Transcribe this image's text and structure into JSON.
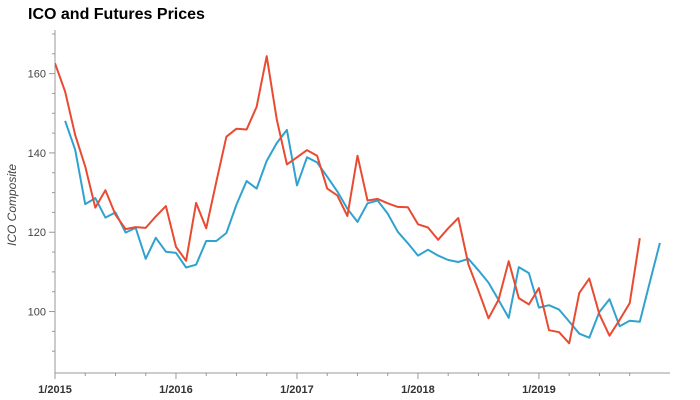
{
  "chart_data": {
    "type": "line",
    "title": "ICO and Futures Prices",
    "ylabel": "ICO Composite",
    "xlabel": "",
    "x_tick_labels": [
      "1/2015",
      "1/2016",
      "1/2017",
      "1/2018",
      "1/2019"
    ],
    "x_tick_dates": [
      "2015-01",
      "2016-01",
      "2017-01",
      "2018-01",
      "2019-01"
    ],
    "xlim": [
      "2015-01",
      "2020-02"
    ],
    "y_ticks": [
      100,
      120,
      140,
      160
    ],
    "ylim": [
      84.5,
      171
    ],
    "grid": false,
    "series": [
      {
        "color": "#31a2cf",
        "points": [
          [
            "2015-02",
            148.1
          ],
          [
            "2015-03",
            140.8
          ],
          [
            "2015-04",
            127.1
          ],
          [
            "2015-05",
            128.6
          ],
          [
            "2015-06",
            123.7
          ],
          [
            "2015-07",
            125.0
          ],
          [
            "2015-08",
            119.9
          ],
          [
            "2015-09",
            121.1
          ],
          [
            "2015-10",
            113.3
          ],
          [
            "2015-11",
            118.6
          ],
          [
            "2015-12",
            115.1
          ],
          [
            "2016-01",
            114.8
          ],
          [
            "2016-02",
            111.1
          ],
          [
            "2016-03",
            111.8
          ],
          [
            "2016-04",
            117.8
          ],
          [
            "2016-05",
            117.8
          ],
          [
            "2016-06",
            119.8
          ],
          [
            "2016-07",
            127.0
          ],
          [
            "2016-08",
            132.9
          ],
          [
            "2016-09",
            131.0
          ],
          [
            "2016-10",
            138.0
          ],
          [
            "2016-11",
            142.5
          ],
          [
            "2016-12",
            145.8
          ],
          [
            "2017-01",
            131.8
          ],
          [
            "2017-02",
            138.9
          ],
          [
            "2017-03",
            137.6
          ],
          [
            "2017-04",
            134.0
          ],
          [
            "2017-05",
            130.3
          ],
          [
            "2017-06",
            125.9
          ],
          [
            "2017-07",
            122.6
          ],
          [
            "2017-08",
            127.3
          ],
          [
            "2017-09",
            128.0
          ],
          [
            "2017-10",
            124.7
          ],
          [
            "2017-11",
            120.1
          ],
          [
            "2017-12",
            117.2
          ],
          [
            "2018-01",
            114.1
          ],
          [
            "2018-02",
            115.6
          ],
          [
            "2018-03",
            114.1
          ],
          [
            "2018-04",
            113.0
          ],
          [
            "2018-05",
            112.5
          ],
          [
            "2018-06",
            113.3
          ],
          [
            "2018-07",
            110.4
          ],
          [
            "2018-08",
            107.3
          ],
          [
            "2018-09",
            102.9
          ],
          [
            "2018-10",
            98.4
          ],
          [
            "2018-11",
            111.2
          ],
          [
            "2018-12",
            109.7
          ],
          [
            "2019-01",
            101.0
          ],
          [
            "2019-02",
            101.6
          ],
          [
            "2019-03",
            100.5
          ],
          [
            "2019-04",
            97.5
          ],
          [
            "2019-05",
            94.4
          ],
          [
            "2019-06",
            93.4
          ],
          [
            "2019-07",
            99.9
          ],
          [
            "2019-08",
            103.1
          ],
          [
            "2019-09",
            96.3
          ],
          [
            "2019-10",
            97.7
          ],
          [
            "2019-11",
            97.4
          ],
          [
            "2019-12",
            107.4
          ],
          [
            "2020-01",
            117.3
          ]
        ]
      },
      {
        "color": "#e84b32",
        "points": [
          [
            "2015-01",
            162.6
          ],
          [
            "2015-02",
            155.5
          ],
          [
            "2015-03",
            144.5
          ],
          [
            "2015-04",
            136.6
          ],
          [
            "2015-05",
            126.2
          ],
          [
            "2015-06",
            130.6
          ],
          [
            "2015-07",
            124.4
          ],
          [
            "2015-08",
            120.8
          ],
          [
            "2015-09",
            121.3
          ],
          [
            "2015-10",
            121.1
          ],
          [
            "2015-11",
            124.0
          ],
          [
            "2015-12",
            126.6
          ],
          [
            "2016-01",
            116.3
          ],
          [
            "2016-02",
            112.8
          ],
          [
            "2016-03",
            127.4
          ],
          [
            "2016-04",
            121.0
          ],
          [
            "2016-05",
            132.7
          ],
          [
            "2016-06",
            144.1
          ],
          [
            "2016-07",
            146.1
          ],
          [
            "2016-08",
            145.9
          ],
          [
            "2016-09",
            151.6
          ],
          [
            "2016-10",
            164.4
          ],
          [
            "2016-11",
            148.4
          ],
          [
            "2016-12",
            137.1
          ],
          [
            "2017-01",
            138.9
          ],
          [
            "2017-02",
            140.7
          ],
          [
            "2017-03",
            139.3
          ],
          [
            "2017-04",
            131.0
          ],
          [
            "2017-05",
            129.3
          ],
          [
            "2017-06",
            124.1
          ],
          [
            "2017-07",
            139.3
          ],
          [
            "2017-08",
            128.0
          ],
          [
            "2017-09",
            128.4
          ],
          [
            "2017-10",
            127.3
          ],
          [
            "2017-11",
            126.4
          ],
          [
            "2017-12",
            126.3
          ],
          [
            "2018-01",
            122.0
          ],
          [
            "2018-02",
            121.2
          ],
          [
            "2018-03",
            118.1
          ],
          [
            "2018-04",
            121.0
          ],
          [
            "2018-05",
            123.6
          ],
          [
            "2018-06",
            111.9
          ],
          [
            "2018-07",
            105.3
          ],
          [
            "2018-08",
            98.3
          ],
          [
            "2018-09",
            103.0
          ],
          [
            "2018-10",
            112.7
          ],
          [
            "2018-11",
            103.4
          ],
          [
            "2018-12",
            101.8
          ],
          [
            "2019-01",
            105.9
          ],
          [
            "2019-02",
            95.3
          ],
          [
            "2019-03",
            94.8
          ],
          [
            "2019-04",
            92.0
          ],
          [
            "2019-05",
            104.7
          ],
          [
            "2019-06",
            108.3
          ],
          [
            "2019-07",
            99.3
          ],
          [
            "2019-08",
            93.9
          ],
          [
            "2019-09",
            97.9
          ],
          [
            "2019-10",
            102.1
          ],
          [
            "2019-11",
            118.5
          ]
        ]
      }
    ]
  }
}
